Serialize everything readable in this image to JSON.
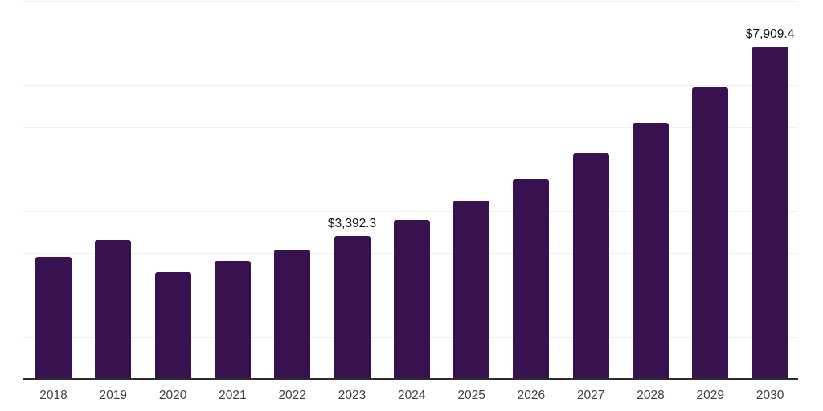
{
  "chart": {
    "background_color": "#ffffff",
    "bar_color": "#38124F",
    "gridline_color": "#efefef",
    "axis_line_color": "#2d2d2d",
    "tick_label_color": "#3e3e3e",
    "data_label_color": "#101010"
  },
  "chart_data": {
    "type": "bar",
    "title": "",
    "xlabel": "",
    "ylabel": "",
    "categories": [
      "2018",
      "2019",
      "2020",
      "2021",
      "2022",
      "2023",
      "2024",
      "2025",
      "2026",
      "2027",
      "2028",
      "2029",
      "2030"
    ],
    "values": [
      2900,
      3300,
      2550,
      2800,
      3080,
      3392.3,
      3790,
      4240,
      4755,
      5365,
      6100,
      6930,
      7909.4
    ],
    "data_labels": [
      null,
      null,
      null,
      null,
      null,
      "$3,392.3",
      null,
      null,
      null,
      null,
      null,
      null,
      "$7,909.4"
    ],
    "ylim": [
      0,
      9000
    ],
    "grid_step": 1000,
    "grid": "horizontal-only",
    "y_tick_labels_visible": false,
    "legend_position": "none"
  }
}
